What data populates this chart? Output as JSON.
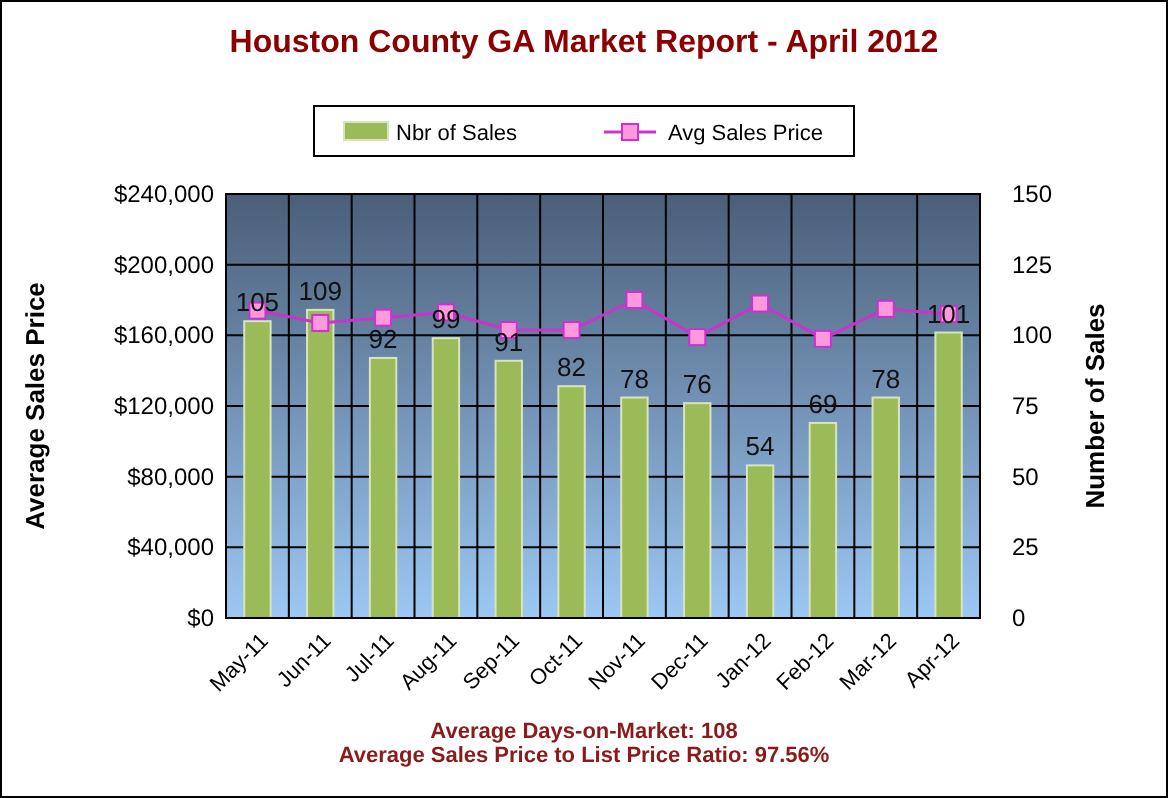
{
  "chart_data": {
    "type": "bar",
    "title": "Houston County GA Market Report - April 2012",
    "ylabel": "Average Sales Price",
    "y2label": "Number of Sales",
    "categories": [
      "May-11",
      "Jun-11",
      "Jul-11",
      "Aug-11",
      "Sep-11",
      "Oct-11",
      "Nov-11",
      "Dec-11",
      "Jan-12",
      "Feb-12",
      "Mar-12",
      "Apr-12"
    ],
    "series": [
      {
        "name": "Nbr of Sales",
        "axis": "y2",
        "color": "#9bbb59",
        "values": [
          105,
          109,
          92,
          99,
          91,
          82,
          78,
          76,
          54,
          69,
          78,
          101
        ],
        "value_labels": [
          "105",
          "109",
          "92",
          "99",
          "91",
          "82",
          "78",
          "76",
          "54",
          "69",
          "78",
          "101"
        ]
      },
      {
        "name": "Avg Sales Price",
        "type": "line",
        "axis": "y",
        "color": "#cc33cc",
        "marker": "square",
        "values": [
          174000,
          167000,
          170000,
          173000,
          163000,
          163000,
          180000,
          159000,
          178000,
          158000,
          175000,
          172000
        ]
      }
    ],
    "ylim": [
      0,
      240000
    ],
    "yticks": [
      {
        "value": 0,
        "label": "$0"
      },
      {
        "value": 40000,
        "label": "$40,000"
      },
      {
        "value": 80000,
        "label": "$80,000"
      },
      {
        "value": 120000,
        "label": "$120,000"
      },
      {
        "value": 160000,
        "label": "$160,000"
      },
      {
        "value": 200000,
        "label": "$200,000"
      },
      {
        "value": 240000,
        "label": "$240,000"
      }
    ],
    "y2lim": [
      0,
      150
    ],
    "y2ticks": [
      0,
      25,
      50,
      75,
      100,
      125,
      150
    ],
    "grid": true,
    "legend": "top",
    "annotations": [
      "Average Days-on-Market: 108",
      "Average Sales Price to List Price Ratio: 97.56%"
    ]
  }
}
